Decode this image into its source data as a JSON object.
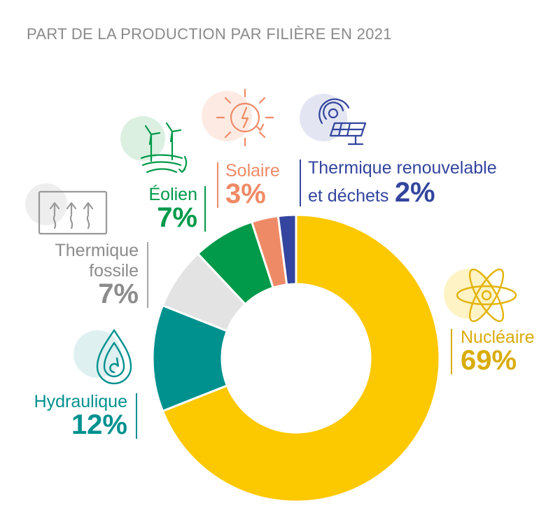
{
  "title": "PART DE LA PRODUCTION PAR FILIÈRE EN 2021",
  "chart_data": {
    "type": "pie",
    "categories": [
      "Nucléaire",
      "Hydraulique",
      "Thermique fossile",
      "Éolien",
      "Solaire",
      "Thermique renouvelable et déchets"
    ],
    "values": [
      69,
      12,
      7,
      7,
      3,
      2
    ],
    "value_labels": [
      "69%",
      "12%",
      "7%",
      "7%",
      "3%",
      "2%"
    ],
    "unit": "%",
    "colors": [
      "#fcc800",
      "#00918f",
      "#e3e3e3",
      "#009a4a",
      "#ef8a66",
      "#33459e"
    ]
  },
  "labels": {
    "nucleaire": {
      "name": "Nucléaire",
      "pct": "69%",
      "color": "#d9ac0c",
      "icon": "atom-icon"
    },
    "hydraulique": {
      "name": "Hydraulique",
      "pct": "12%",
      "color": "#00918f",
      "icon": "water-drop-icon"
    },
    "thermique_fossile": {
      "name_line1": "Thermique",
      "name_line2": "fossile",
      "pct": "7%",
      "color": "#8c8c8c",
      "icon": "heat-waves-icon"
    },
    "eolien": {
      "name": "Éolien",
      "pct": "7%",
      "color": "#009a4a",
      "icon": "wind-turbine-icon"
    },
    "solaire": {
      "name": "Solaire",
      "pct": "3%",
      "color": "#ef8a66",
      "icon": "sun-icon"
    },
    "thermique_renouvelable": {
      "name_line1": "Thermique renouvelable",
      "name_line2": "et déchets",
      "pct": "2%",
      "color": "#33459e",
      "icon": "solar-panel-icon"
    }
  }
}
